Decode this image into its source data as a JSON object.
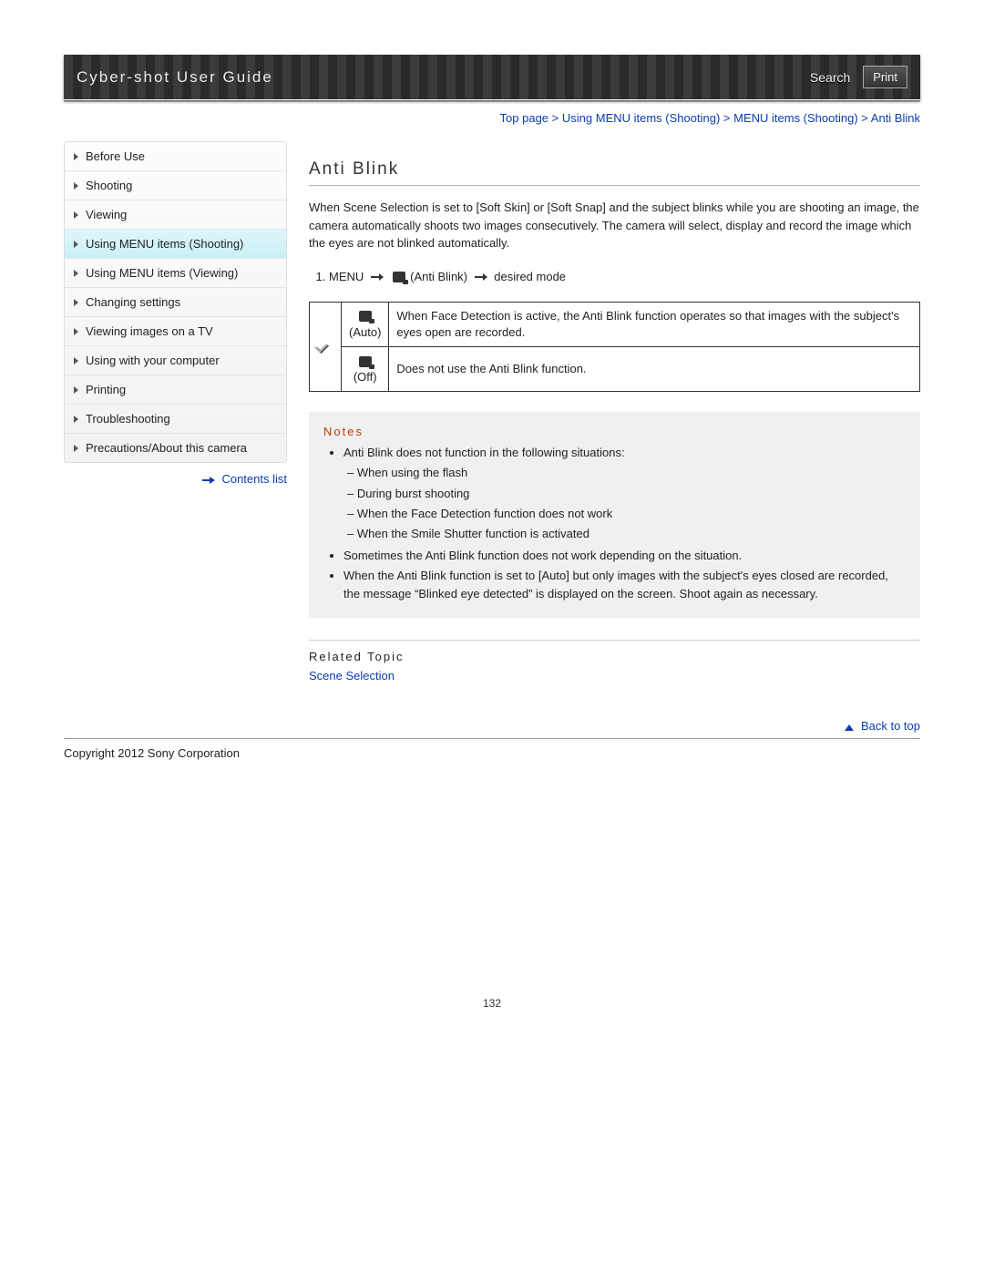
{
  "header": {
    "title": "Cyber-shot User Guide",
    "search_label": "Search",
    "print_label": "Print"
  },
  "breadcrumb": {
    "items": [
      "Top page",
      "Using MENU items (Shooting)",
      "MENU items (Shooting)"
    ],
    "current": "Anti Blink",
    "separator": ">"
  },
  "sidebar": {
    "items": [
      {
        "label": "Before Use",
        "active": false
      },
      {
        "label": "Shooting",
        "active": false
      },
      {
        "label": "Viewing",
        "active": false
      },
      {
        "label": "Using MENU items (Shooting)",
        "active": true
      },
      {
        "label": "Using MENU items (Viewing)",
        "active": false
      },
      {
        "label": "Changing settings",
        "active": false
      },
      {
        "label": "Viewing images on a TV",
        "active": false
      },
      {
        "label": "Using with your computer",
        "active": false
      },
      {
        "label": "Printing",
        "active": false
      },
      {
        "label": "Troubleshooting",
        "active": false
      },
      {
        "label": "Precautions/About this camera",
        "active": false
      }
    ],
    "contents_list_label": "Contents list"
  },
  "main": {
    "title": "Anti Blink",
    "intro": "When Scene Selection is set to [Soft Skin] or [Soft Snap] and the subject blinks while you are shooting an image, the camera automatically shoots two images consecutively. The camera will select, display and record the image which the eyes are not blinked automatically.",
    "step": {
      "prefix": "MENU",
      "mid": "(Anti Blink)",
      "suffix": "desired mode"
    },
    "options": [
      {
        "checked": true,
        "mode_label": "(Auto)",
        "desc": "When Face Detection is active, the Anti Blink function operates so that images with the subject's eyes open are recorded."
      },
      {
        "checked": false,
        "mode_label": "(Off)",
        "desc": "Does not use the Anti Blink function."
      }
    ],
    "notes": {
      "title": "Notes",
      "items": [
        {
          "text": "Anti Blink does not function in the following situations:",
          "sub": [
            "When using the flash",
            "During burst shooting",
            "When the Face Detection function does not work",
            "When the Smile Shutter function is activated"
          ]
        },
        {
          "text": "Sometimes the Anti Blink function does not work depending on the situation."
        },
        {
          "text": "When the Anti Blink function is set to [Auto] but only images with the subject's eyes closed are recorded, the message “Blinked eye detected” is displayed on the screen. Shoot again as necessary."
        }
      ]
    },
    "related": {
      "title": "Related Topic",
      "link_label": "Scene Selection"
    }
  },
  "footer": {
    "back_to_top": "Back to top",
    "copyright": "Copyright 2012 Sony Corporation",
    "page_number": "132"
  },
  "colors": {
    "link": "#0b3db0",
    "notes_title": "#c23a00",
    "sidebar_active_bg": "#c7eff6",
    "header_bg": "#2b2b2b"
  }
}
